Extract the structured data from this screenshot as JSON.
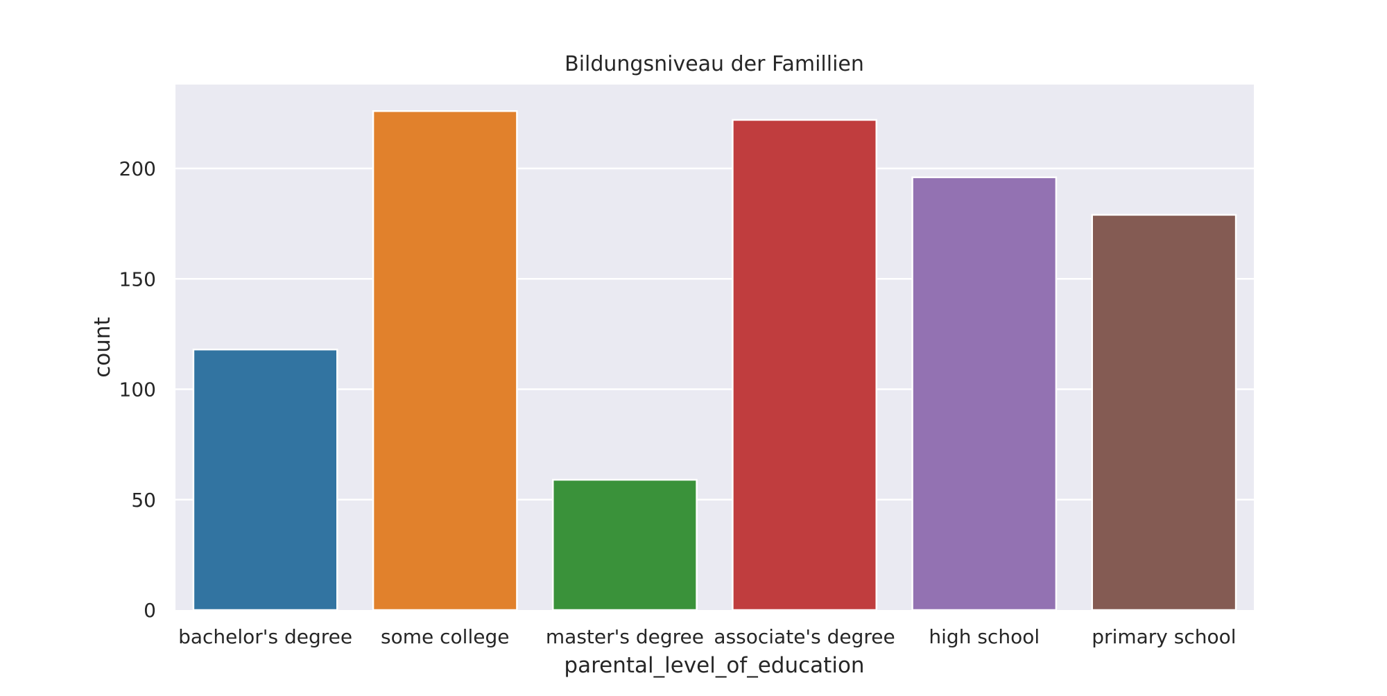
{
  "chart_data": {
    "type": "bar",
    "title": "Bildungsniveau der Famillien",
    "xlabel": "parental_level_of_education",
    "ylabel": "count",
    "categories": [
      "bachelor's degree",
      "some college",
      "master's degree",
      "associate's degree",
      "high school",
      "primary school"
    ],
    "values": [
      118,
      226,
      59,
      222,
      196,
      179
    ],
    "colors": [
      "#3274a1",
      "#e1812c",
      "#3a923a",
      "#c03d3e",
      "#9372b2",
      "#845b53"
    ],
    "ylim": [
      0,
      238
    ],
    "yticks": [
      0,
      50,
      100,
      150,
      200
    ],
    "grid": true,
    "background": "#eaeaf2",
    "gridColor": "#ffffff"
  }
}
